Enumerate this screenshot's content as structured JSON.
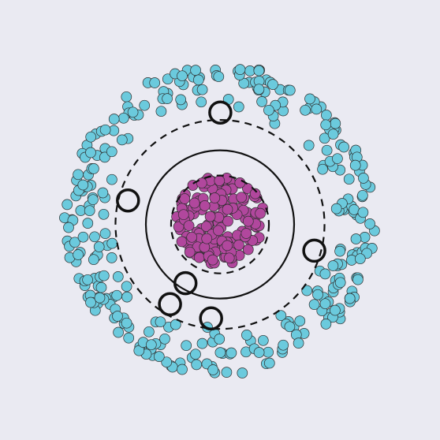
{
  "chart_data": {
    "type": "scatter",
    "title": "",
    "xlabel": "",
    "ylabel": "",
    "xlim": [
      -1.2,
      1.2
    ],
    "ylim": [
      -1.2,
      1.2
    ],
    "grid": false,
    "background": "#eaeaf2",
    "series": [
      {
        "class": "inner",
        "color": "#b1479d",
        "count": 180,
        "radius_range": [
          0,
          0.3
        ],
        "center": [
          0,
          0
        ]
      },
      {
        "class": "outer",
        "color": "#6bcadd",
        "count": 320,
        "radius_range": [
          0.72,
          1.05
        ],
        "center": [
          0,
          0
        ]
      }
    ],
    "decision_boundaries": [
      {
        "style": "solid",
        "radius": 0.5,
        "center": [
          0,
          -0.03
        ]
      },
      {
        "style": "dashed",
        "radius": 0.33,
        "center": [
          0,
          -0.03
        ]
      },
      {
        "style": "dashed",
        "radius": 0.705,
        "center": [
          0,
          -0.03
        ]
      }
    ],
    "support_vectors": [
      {
        "x": 0.002,
        "y": 0.725
      },
      {
        "x": -0.621,
        "y": 0.132
      },
      {
        "x": 0.636,
        "y": -0.207
      },
      {
        "x": -0.233,
        "y": -0.426
      },
      {
        "x": -0.337,
        "y": -0.568
      },
      {
        "x": -0.06,
        "y": -0.664
      }
    ]
  }
}
